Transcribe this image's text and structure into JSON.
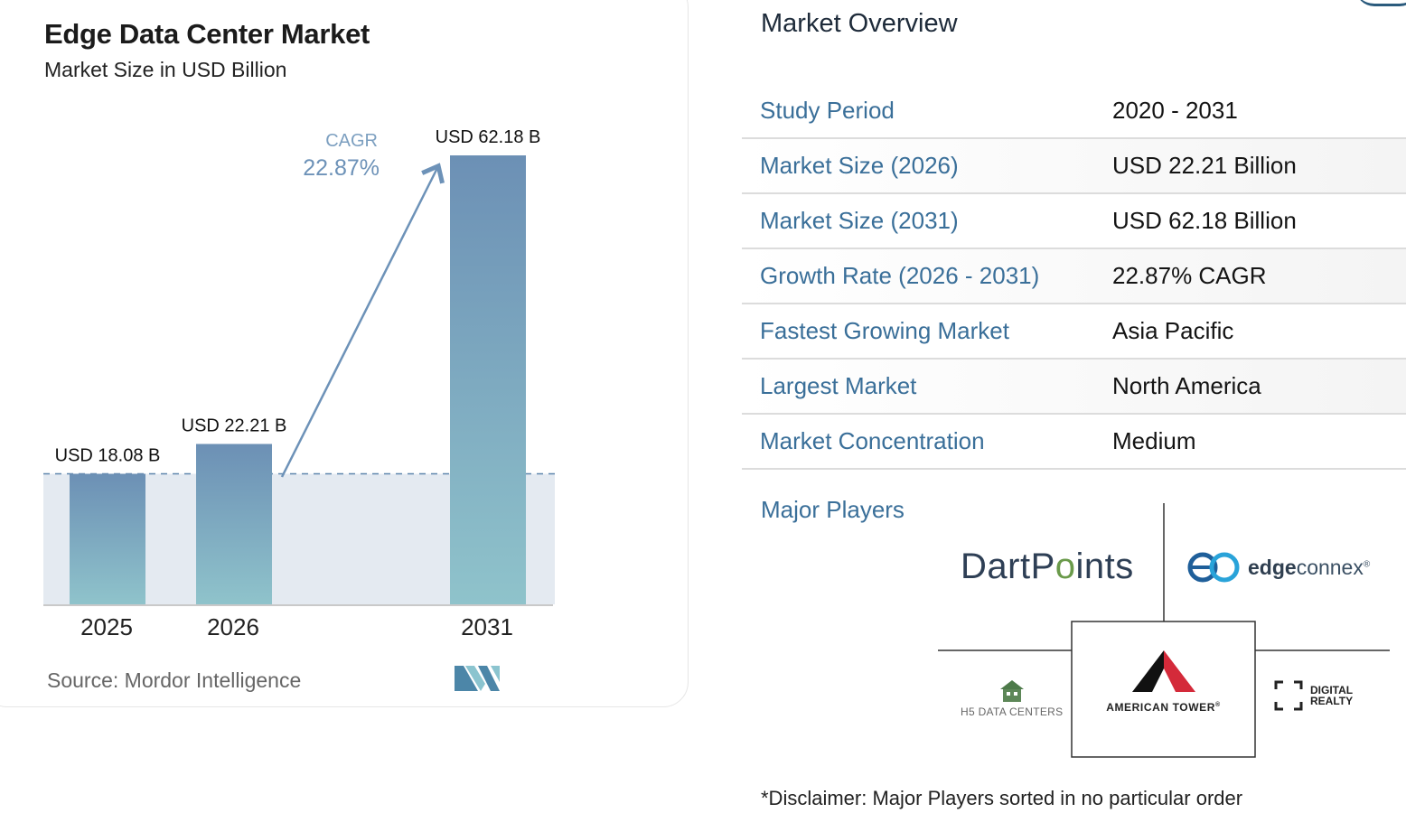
{
  "chart": {
    "title": "Edge Data Center Market",
    "subtitle": "Market Size in USD Billion",
    "source": "Source: Mordor Intelligence",
    "cagr_label": "CAGR",
    "cagr_value": "22.87%"
  },
  "chart_data": {
    "type": "bar",
    "title": "Edge Data Center Market",
    "subtitle": "Market Size in USD Billion",
    "categories": [
      "2025",
      "2026",
      "2031"
    ],
    "values": [
      18.08,
      22.21,
      62.18
    ],
    "data_labels": [
      "USD 18.08 B",
      "USD 22.21 B",
      "USD 62.18 B"
    ],
    "ylim": [
      0,
      62.18
    ],
    "xlabel": "",
    "ylabel": "",
    "annotation": {
      "label": "CAGR",
      "value": "22.87%"
    },
    "grid": false,
    "colors": {
      "bar_top": "#6c90b5",
      "bar_bottom": "#8fc3cb",
      "baseline_band": "#e4eaf1",
      "arrow": "#6d92b8",
      "cagr_text": "#6d92b8"
    }
  },
  "overview": {
    "title": "Market Overview",
    "rows": [
      {
        "label": "Study Period",
        "value": "2020 - 2031"
      },
      {
        "label": "Market Size (2026)",
        "value": "USD 22.21 Billion"
      },
      {
        "label": "Market Size (2031)",
        "value": "USD 62.18 Billion"
      },
      {
        "label": "Growth Rate (2026 - 2031)",
        "value": "22.87% CAGR"
      },
      {
        "label": "Fastest Growing Market",
        "value": "Asia Pacific"
      },
      {
        "label": "Largest Market",
        "value": "North America"
      },
      {
        "label": "Market Concentration",
        "value": "Medium"
      }
    ]
  },
  "players": {
    "title": "Major Players",
    "dartpoints": {
      "part1": "DartP",
      "part2": "o",
      "part3": "ints"
    },
    "edgeconnex": {
      "bold": "edge",
      "light": "connex",
      "mark": "®"
    },
    "h5": "H5 DATA CENTERS",
    "american_tower": "AMERICAN TOWER",
    "american_tower_mark": "®",
    "digital_realty_1": "DIGITAL",
    "digital_realty_2": "REALTY"
  },
  "disclaimer": "*Disclaimer: Major Players sorted in no particular order"
}
